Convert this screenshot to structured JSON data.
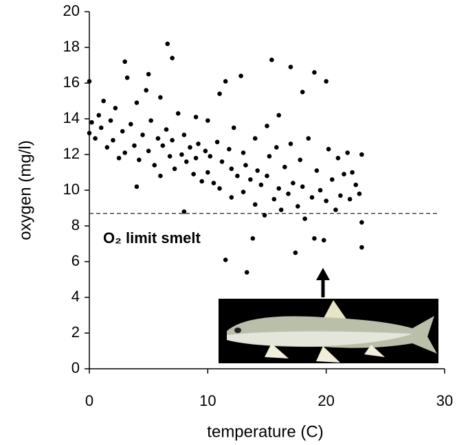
{
  "chart_data": {
    "type": "scatter",
    "xlabel": "temperature (C)",
    "ylabel": "oxygen (mg/l)",
    "annotation": "O₂ limit smelt",
    "threshold": 8.7,
    "color": "#000000",
    "xlim": [
      0,
      30
    ],
    "ylim": [
      0,
      20
    ],
    "xticks": [
      0,
      10,
      20,
      30
    ],
    "yticks": [
      0,
      2,
      4,
      6,
      8,
      10,
      12,
      14,
      16,
      18,
      20
    ],
    "x": [
      0,
      0,
      0.2,
      0.5,
      0.8,
      1,
      1.2,
      1.5,
      1.8,
      2,
      2.2,
      2.5,
      2.8,
      3,
      3,
      3.2,
      3.5,
      3.8,
      4,
      4,
      4.2,
      4.5,
      4.8,
      5,
      5,
      5.2,
      5.5,
      5.8,
      6,
      6,
      6.2,
      6.5,
      6.6,
      6.8,
      7,
      7,
      7.2,
      7.5,
      7.8,
      8,
      8,
      8.2,
      8.5,
      8.8,
      9,
      9,
      9.2,
      9.5,
      9.8,
      10,
      10,
      10.2,
      10.5,
      10.8,
      11,
      11,
      11.2,
      11.5,
      11.5,
      11.8,
      12,
      12,
      12.2,
      12.5,
      12.8,
      13,
      13,
      13.2,
      13.3,
      13.6,
      13.8,
      14,
      14,
      14.2,
      14.5,
      14.8,
      15,
      15,
      15.2,
      15.4,
      15.6,
      15.8,
      16,
      16,
      16.2,
      16.5,
      16.8,
      17,
      17,
      17.2,
      17.4,
      17.6,
      17.8,
      18,
      18,
      18.2,
      18.5,
      18.8,
      19,
      19,
      19.2,
      19.5,
      19.8,
      20,
      20,
      20.2,
      20.5,
      20.8,
      21,
      21.2,
      21.5,
      21.8,
      22,
      22.2,
      22.5,
      22.8,
      23,
      23,
      23
    ],
    "values": [
      13.2,
      16.1,
      13.8,
      12.9,
      14.2,
      13.5,
      15.0,
      12.4,
      13.9,
      12.8,
      14.6,
      11.8,
      13.3,
      17.2,
      12.1,
      16.3,
      13.7,
      12.5,
      10.2,
      14.9,
      11.7,
      13.1,
      15.6,
      16.5,
      12.2,
      13.9,
      11.4,
      12.9,
      15.2,
      10.8,
      12.5,
      13.4,
      18.2,
      11.9,
      17.4,
      12.8,
      11.2,
      14.3,
      12.0,
      8.8,
      13.1,
      11.6,
      12.4,
      10.9,
      14.1,
      11.8,
      12.6,
      10.5,
      12.2,
      11.0,
      13.9,
      11.9,
      10.4,
      12.7,
      15.4,
      10.1,
      11.6,
      6.1,
      16.1,
      12.3,
      9.6,
      11.2,
      13.5,
      10.8,
      16.4,
      12.1,
      9.9,
      11.4,
      5.4,
      10.6,
      7.3,
      12.9,
      9.2,
      11.1,
      10.3,
      8.6,
      13.6,
      10.8,
      11.9,
      17.3,
      9.5,
      12.4,
      10.1,
      14.2,
      8.9,
      11.3,
      9.8,
      16.9,
      12.6,
      10.4,
      6.5,
      9.1,
      11.7,
      15.5,
      10.2,
      8.4,
      12.9,
      9.6,
      16.6,
      7.3,
      11.1,
      10.0,
      7.2,
      16.1,
      9.4,
      12.3,
      10.6,
      8.9,
      11.8,
      9.7,
      10.9,
      12.1,
      9.5,
      11.0,
      10.3,
      9.8,
      12.0,
      8.2,
      6.8
    ]
  }
}
